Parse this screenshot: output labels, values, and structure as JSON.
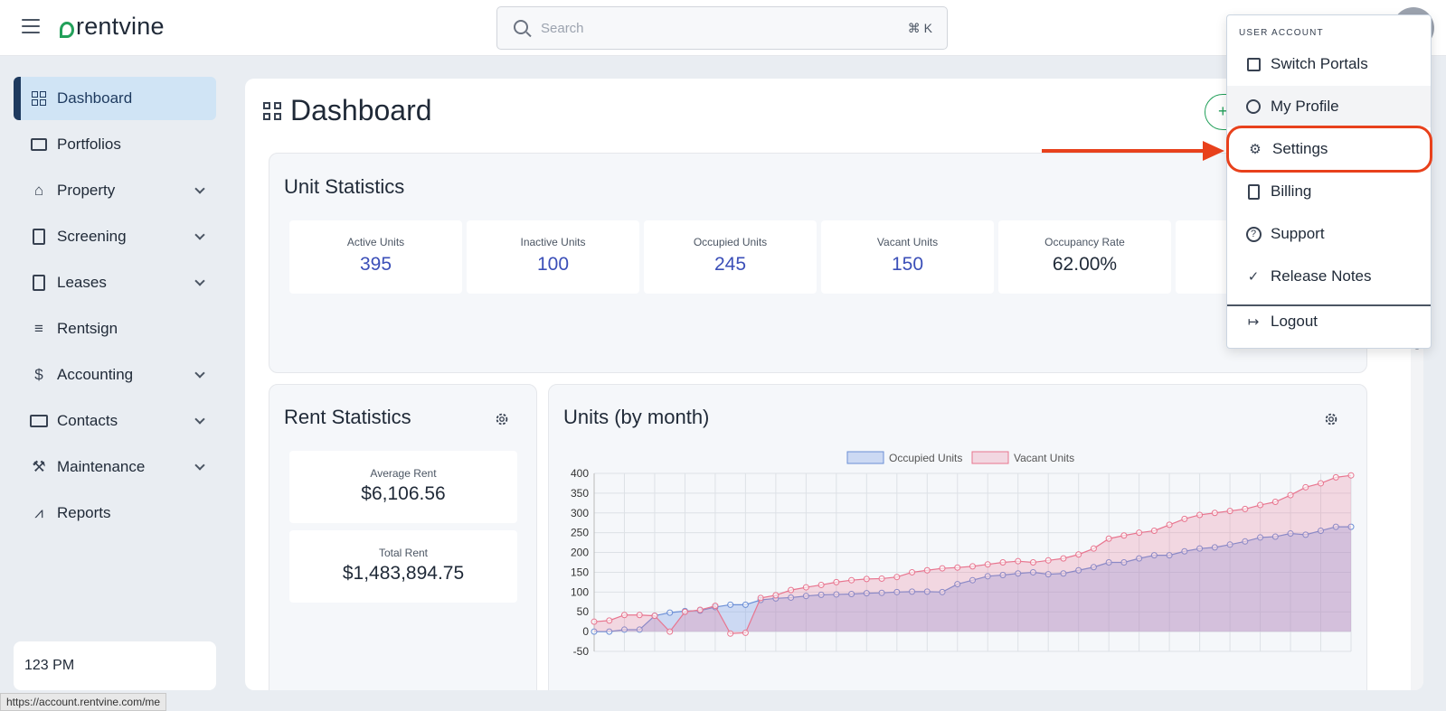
{
  "topbar": {
    "logo_text": "rentvine",
    "search_placeholder": "Search",
    "search_shortcut": "⌘ K"
  },
  "sidebar": {
    "items": [
      {
        "label": "Dashboard",
        "icon": "dashboard-grid-icon",
        "active": true,
        "expandable": false
      },
      {
        "label": "Portfolios",
        "icon": "folders-icon",
        "expandable": false
      },
      {
        "label": "Property",
        "icon": "buildings-icon",
        "expandable": true
      },
      {
        "label": "Screening",
        "icon": "document-search-icon",
        "expandable": true
      },
      {
        "label": "Leases",
        "icon": "clipboard-icon",
        "expandable": true
      },
      {
        "label": "Rentsign",
        "icon": "signature-icon",
        "expandable": false
      },
      {
        "label": "Accounting",
        "icon": "dollar-icon",
        "expandable": true
      },
      {
        "label": "Contacts",
        "icon": "book-icon",
        "expandable": true
      },
      {
        "label": "Maintenance",
        "icon": "tools-icon",
        "expandable": true
      },
      {
        "label": "Reports",
        "icon": "chart-icon",
        "expandable": false
      }
    ],
    "user_box": "123 PM"
  },
  "status_url": "https://account.rentvine.com/me",
  "main": {
    "title": "Dashboard",
    "add_button": "+",
    "unit_statistics": {
      "title": "Unit Statistics",
      "stats": [
        {
          "label": "Active Units",
          "value": "395"
        },
        {
          "label": "Inactive Units",
          "value": "100"
        },
        {
          "label": "Occupied Units",
          "value": "245"
        },
        {
          "label": "Vacant Units",
          "value": "150"
        },
        {
          "label": "Occupancy Rate",
          "value": "62.00%"
        }
      ]
    },
    "rent_statistics": {
      "title": "Rent Statistics",
      "average_label": "Average Rent",
      "average_value": "$6,106.56",
      "total_label": "Total Rent",
      "total_value": "$1,483,894.75"
    },
    "units_chart_title": "Units (by month)"
  },
  "chart_data": {
    "type": "area",
    "title": "Units (by month)",
    "ylim": [
      -50,
      400
    ],
    "yticks": [
      400,
      350,
      300,
      250,
      200,
      150,
      100,
      50,
      0,
      -50
    ],
    "grid": true,
    "legend": "top-center",
    "series": [
      {
        "name": "Occupied Units",
        "color": "#6b8fd6",
        "values": [
          0,
          0,
          5,
          5,
          40,
          48,
          52,
          53,
          62,
          68,
          68,
          80,
          84,
          86,
          90,
          93,
          94,
          95,
          97,
          98,
          100,
          101,
          101,
          100,
          120,
          130,
          140,
          143,
          147,
          150,
          145,
          147,
          155,
          163,
          175,
          175,
          185,
          193,
          193,
          203,
          210,
          213,
          220,
          228,
          238,
          240,
          248,
          245,
          255,
          265,
          265
        ]
      },
      {
        "name": "Vacant Units",
        "color": "#e8758f",
        "values": [
          25,
          28,
          42,
          42,
          40,
          0,
          50,
          55,
          65,
          -5,
          -3,
          85,
          92,
          105,
          112,
          118,
          125,
          130,
          133,
          134,
          138,
          150,
          155,
          160,
          162,
          165,
          170,
          175,
          178,
          175,
          180,
          185,
          195,
          210,
          235,
          243,
          250,
          255,
          270,
          285,
          295,
          300,
          305,
          310,
          320,
          328,
          345,
          365,
          375,
          390,
          395
        ]
      }
    ]
  },
  "user_menu": {
    "header": "USER ACCOUNT",
    "items": [
      {
        "label": "Switch Portals",
        "icon": "portals-icon"
      },
      {
        "label": "My Profile",
        "icon": "user-circle-icon"
      },
      {
        "label": "Settings",
        "icon": "user-settings-icon"
      },
      {
        "label": "Billing",
        "icon": "invoice-icon"
      },
      {
        "label": "Support",
        "icon": "help-circle-icon"
      },
      {
        "label": "Release Notes",
        "icon": "badge-check-icon"
      },
      {
        "label": "Logout",
        "icon": "logout-icon"
      }
    ]
  },
  "colors": {
    "brand": "#22a05a",
    "accent_blue": "#3b4fb8",
    "highlight": "#e8411c"
  }
}
